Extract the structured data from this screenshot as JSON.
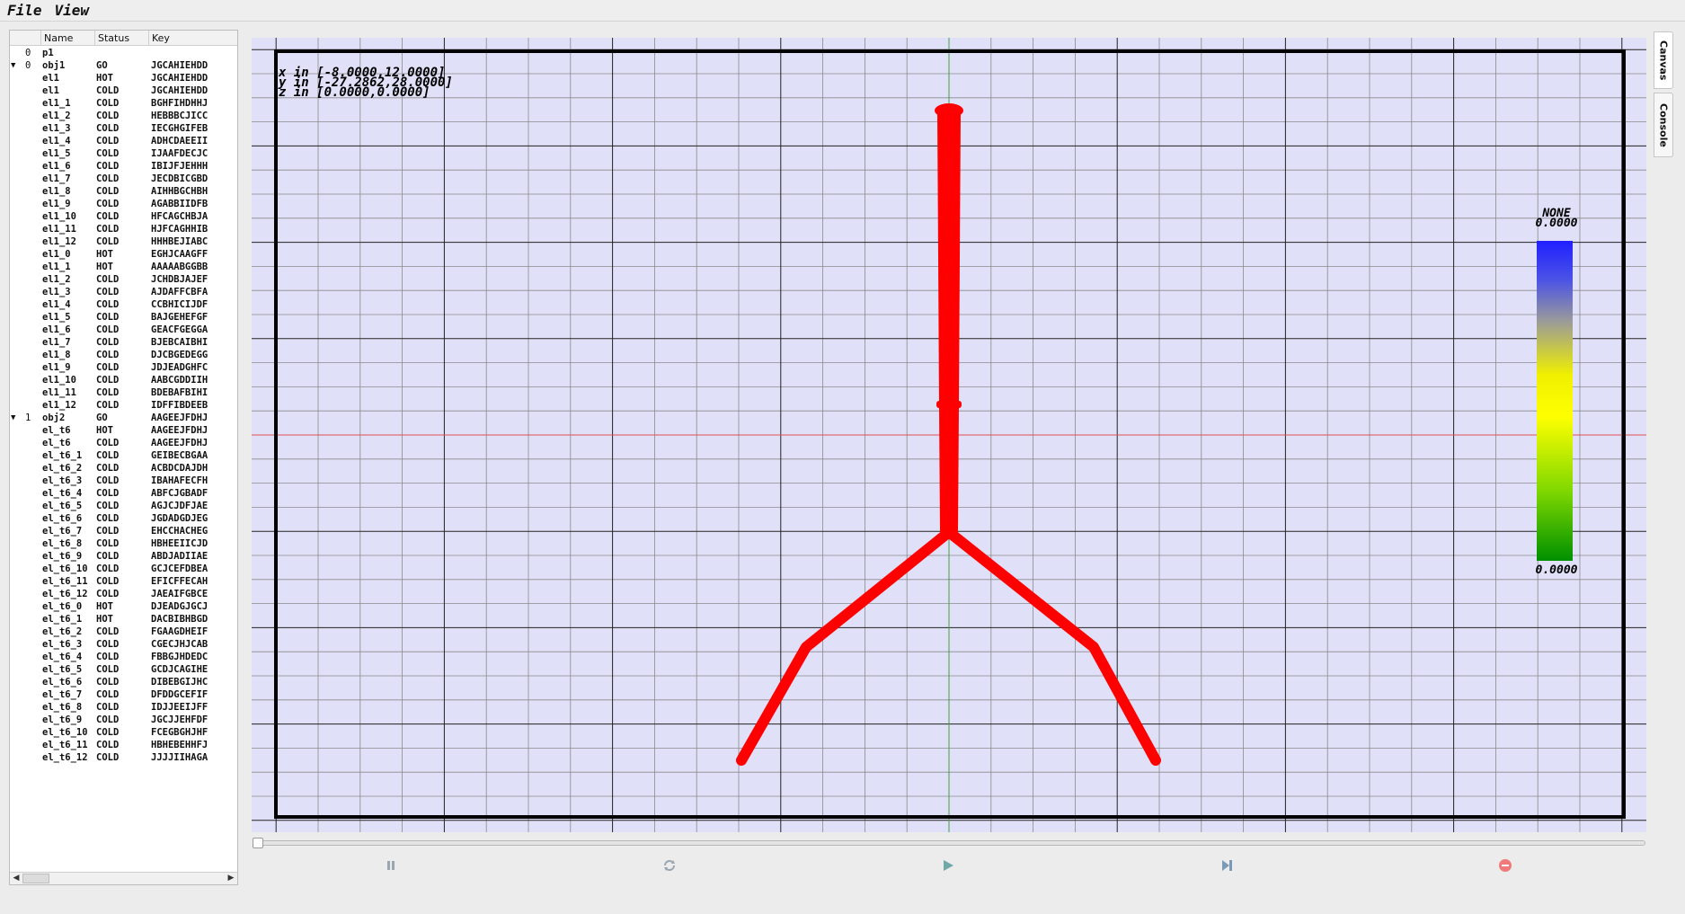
{
  "menu": {
    "file": "File",
    "view": "View"
  },
  "tree": {
    "columns": [
      "Name",
      "Status",
      "Key"
    ],
    "rows": [
      {
        "arrow": "",
        "idx": "0",
        "name": "p1",
        "status": "",
        "key": ""
      },
      {
        "arrow": "▼",
        "idx": "0",
        "name": "obj1",
        "status": "GO",
        "key": "JGCAHIEHDD"
      },
      {
        "arrow": "",
        "idx": "",
        "name": "el1",
        "status": "HOT",
        "key": "JGCAHIEHDD"
      },
      {
        "arrow": "",
        "idx": "",
        "name": "el1",
        "status": "COLD",
        "key": "JGCAHIEHDD"
      },
      {
        "arrow": "",
        "idx": "",
        "name": "el1_1",
        "status": "COLD",
        "key": "BGHFIHDHHJ"
      },
      {
        "arrow": "",
        "idx": "",
        "name": "el1_2",
        "status": "COLD",
        "key": "HEBBBCJICC"
      },
      {
        "arrow": "",
        "idx": "",
        "name": "el1_3",
        "status": "COLD",
        "key": "IECGHGIFEB"
      },
      {
        "arrow": "",
        "idx": "",
        "name": "el1_4",
        "status": "COLD",
        "key": "ADHCDAEEII"
      },
      {
        "arrow": "",
        "idx": "",
        "name": "el1_5",
        "status": "COLD",
        "key": "IJAAFDECJC"
      },
      {
        "arrow": "",
        "idx": "",
        "name": "el1_6",
        "status": "COLD",
        "key": "IBIJFJEHHH"
      },
      {
        "arrow": "",
        "idx": "",
        "name": "el1_7",
        "status": "COLD",
        "key": "JECDBICGBD"
      },
      {
        "arrow": "",
        "idx": "",
        "name": "el1_8",
        "status": "COLD",
        "key": "AIHHBGCHBH"
      },
      {
        "arrow": "",
        "idx": "",
        "name": "el1_9",
        "status": "COLD",
        "key": "AGABBIIDFB"
      },
      {
        "arrow": "",
        "idx": "",
        "name": "el1_10",
        "status": "COLD",
        "key": "HFCAGCHBJA"
      },
      {
        "arrow": "",
        "idx": "",
        "name": "el1_11",
        "status": "COLD",
        "key": "HJFCAGHHIB"
      },
      {
        "arrow": "",
        "idx": "",
        "name": "el1_12",
        "status": "COLD",
        "key": "HHHBEJIABC"
      },
      {
        "arrow": "",
        "idx": "",
        "name": "el1_0",
        "status": "HOT",
        "key": "EGHJCAAGFF"
      },
      {
        "arrow": "",
        "idx": "",
        "name": "el1_1",
        "status": "HOT",
        "key": "AAAAABGGBB"
      },
      {
        "arrow": "",
        "idx": "",
        "name": "el1_2",
        "status": "COLD",
        "key": "JCHDBJAJEF"
      },
      {
        "arrow": "",
        "idx": "",
        "name": "el1_3",
        "status": "COLD",
        "key": "AJDAFFCBFA"
      },
      {
        "arrow": "",
        "idx": "",
        "name": "el1_4",
        "status": "COLD",
        "key": "CCBHICIJDF"
      },
      {
        "arrow": "",
        "idx": "",
        "name": "el1_5",
        "status": "COLD",
        "key": "BAJGEHEFGF"
      },
      {
        "arrow": "",
        "idx": "",
        "name": "el1_6",
        "status": "COLD",
        "key": "GEACFGEGGA"
      },
      {
        "arrow": "",
        "idx": "",
        "name": "el1_7",
        "status": "COLD",
        "key": "BJEBCAIBHI"
      },
      {
        "arrow": "",
        "idx": "",
        "name": "el1_8",
        "status": "COLD",
        "key": "DJCBGEDEGG"
      },
      {
        "arrow": "",
        "idx": "",
        "name": "el1_9",
        "status": "COLD",
        "key": "JDJEADGHFC"
      },
      {
        "arrow": "",
        "idx": "",
        "name": "el1_10",
        "status": "COLD",
        "key": "AABCGDDIIH"
      },
      {
        "arrow": "",
        "idx": "",
        "name": "el1_11",
        "status": "COLD",
        "key": "BDEBAFBIHI"
      },
      {
        "arrow": "",
        "idx": "",
        "name": "el1_12",
        "status": "COLD",
        "key": "IDFFIBDEEB"
      },
      {
        "arrow": "▼",
        "idx": "1",
        "name": "obj2",
        "status": "GO",
        "key": "AAGEEJFDHJ"
      },
      {
        "arrow": "",
        "idx": "",
        "name": "el_t6",
        "status": "HOT",
        "key": "AAGEEJFDHJ"
      },
      {
        "arrow": "",
        "idx": "",
        "name": "el_t6",
        "status": "COLD",
        "key": "AAGEEJFDHJ"
      },
      {
        "arrow": "",
        "idx": "",
        "name": "el_t6_1",
        "status": "COLD",
        "key": "GEIBECBGAA"
      },
      {
        "arrow": "",
        "idx": "",
        "name": "el_t6_2",
        "status": "COLD",
        "key": "ACBDCDAJDH"
      },
      {
        "arrow": "",
        "idx": "",
        "name": "el_t6_3",
        "status": "COLD",
        "key": "IBAHAFECFH"
      },
      {
        "arrow": "",
        "idx": "",
        "name": "el_t6_4",
        "status": "COLD",
        "key": "ABFCJGBADF"
      },
      {
        "arrow": "",
        "idx": "",
        "name": "el_t6_5",
        "status": "COLD",
        "key": "AGJCJDFJAE"
      },
      {
        "arrow": "",
        "idx": "",
        "name": "el_t6_6",
        "status": "COLD",
        "key": "JGDADGDJEG"
      },
      {
        "arrow": "",
        "idx": "",
        "name": "el_t6_7",
        "status": "COLD",
        "key": "EHCCHACHEG"
      },
      {
        "arrow": "",
        "idx": "",
        "name": "el_t6_8",
        "status": "COLD",
        "key": "HBHEEIICJD"
      },
      {
        "arrow": "",
        "idx": "",
        "name": "el_t6_9",
        "status": "COLD",
        "key": "ABDJADIIAE"
      },
      {
        "arrow": "",
        "idx": "",
        "name": "el_t6_10",
        "status": "COLD",
        "key": "GCJCEFDBEA"
      },
      {
        "arrow": "",
        "idx": "",
        "name": "el_t6_11",
        "status": "COLD",
        "key": "EFICFFECAH"
      },
      {
        "arrow": "",
        "idx": "",
        "name": "el_t6_12",
        "status": "COLD",
        "key": "JAEAIFGBCE"
      },
      {
        "arrow": "",
        "idx": "",
        "name": "el_t6_0",
        "status": "HOT",
        "key": "DJEADGJGCJ"
      },
      {
        "arrow": "",
        "idx": "",
        "name": "el_t6_1",
        "status": "HOT",
        "key": "DACBIBHBGD"
      },
      {
        "arrow": "",
        "idx": "",
        "name": "el_t6_2",
        "status": "COLD",
        "key": "FGAAGDHEIF"
      },
      {
        "arrow": "",
        "idx": "",
        "name": "el_t6_3",
        "status": "COLD",
        "key": "CGECJHJCAB"
      },
      {
        "arrow": "",
        "idx": "",
        "name": "el_t6_4",
        "status": "COLD",
        "key": "FBBGJHDEDC"
      },
      {
        "arrow": "",
        "idx": "",
        "name": "el_t6_5",
        "status": "COLD",
        "key": "GCDJCAGIHE"
      },
      {
        "arrow": "",
        "idx": "",
        "name": "el_t6_6",
        "status": "COLD",
        "key": "DIBEBGIJHC"
      },
      {
        "arrow": "",
        "idx": "",
        "name": "el_t6_7",
        "status": "COLD",
        "key": "DFDDGCEFIF"
      },
      {
        "arrow": "",
        "idx": "",
        "name": "el_t6_8",
        "status": "COLD",
        "key": "IDJJEEIJFF"
      },
      {
        "arrow": "",
        "idx": "",
        "name": "el_t6_9",
        "status": "COLD",
        "key": "JGCJJEHFDF"
      },
      {
        "arrow": "",
        "idx": "",
        "name": "el_t6_10",
        "status": "COLD",
        "key": "FCEGBGHJHF"
      },
      {
        "arrow": "",
        "idx": "",
        "name": "el_t6_11",
        "status": "COLD",
        "key": "HBHEBEHHFJ"
      },
      {
        "arrow": "",
        "idx": "",
        "name": "el_t6_12",
        "status": "COLD",
        "key": "JJJJIIHAGA"
      }
    ]
  },
  "canvas": {
    "range_x": "x in [-8.0000,12.0000]",
    "range_y": "y in [-27.2862,28.0000]",
    "range_z": "z in [0.0000,0.0000]",
    "colorbar_title": "NONE",
    "colorbar_max": "0.0000",
    "colorbar_min": "0.0000",
    "background_color": "#e0e0f8",
    "shape_color": "#ff0000",
    "axis_x_color": "#e05050",
    "axis_y_color": "#40a040"
  },
  "tabs": {
    "canvas": "Canvas",
    "console": "Console"
  },
  "controls": {
    "pause": "pause-icon",
    "reload": "reload-icon",
    "play": "play-icon",
    "step": "step-forward-icon",
    "stop": "stop-icon",
    "slider_value": 0
  }
}
